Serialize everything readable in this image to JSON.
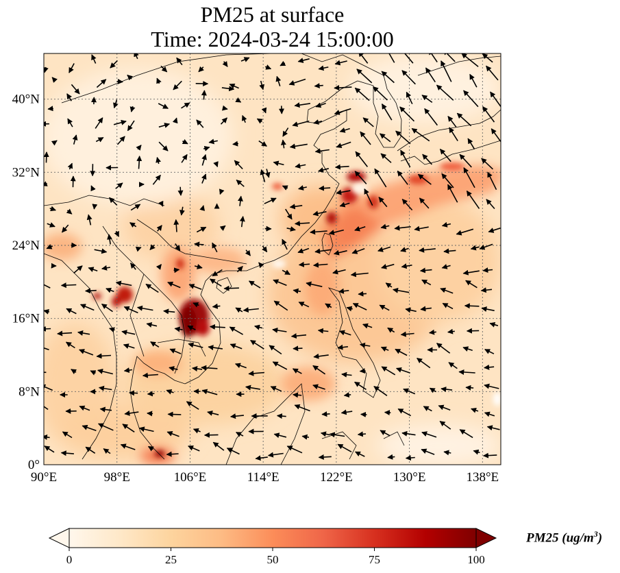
{
  "title": {
    "line1": "PM25 at surface",
    "line2": "Time: 2024-03-24 15:00:00"
  },
  "map": {
    "variable": "PM25",
    "level": "surface",
    "lon_range": [
      90,
      140
    ],
    "lat_range": [
      0,
      45
    ],
    "lon_ticks": [
      "90°E",
      "98°E",
      "106°E",
      "114°E",
      "122°E",
      "130°E",
      "138°E"
    ],
    "lat_ticks": [
      "0°",
      "8°N",
      "16°N",
      "24°N",
      "32°N",
      "40°N"
    ],
    "gridlines": true,
    "overlay": "wind vectors (arrows)",
    "hotspots": [
      {
        "region": "Laos / northern Cambodia",
        "approx_value": "100+"
      },
      {
        "region": "East China coast near Shanghai",
        "approx_value": "100+"
      },
      {
        "region": "Northern Thailand / Myanmar border",
        "approx_value": "75-100"
      }
    ]
  },
  "colorbar": {
    "label": "PM25 (ug/m",
    "label_sup": "3",
    "label_close": ")",
    "min": 0,
    "max": 100,
    "ticks": [
      "0",
      "25",
      "50",
      "75",
      "100"
    ],
    "extend": "both",
    "colormap": "OrRd",
    "colors": [
      "#fff7ec",
      "#fee8c8",
      "#fdd49e",
      "#fdbb84",
      "#fc8d59",
      "#ef6548",
      "#d7301f",
      "#b30000",
      "#7f0000"
    ]
  }
}
